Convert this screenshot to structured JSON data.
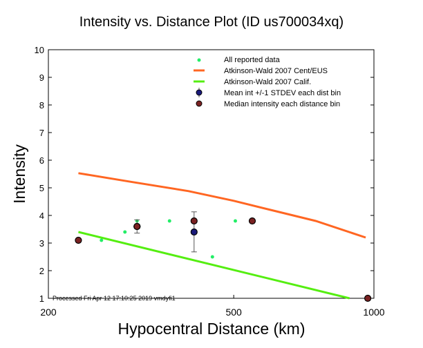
{
  "chart_data": {
    "type": "scatter",
    "title": "Intensity vs. Distance Plot (ID us700034xq)",
    "xlabel": "Hypocentral Distance (km)",
    "ylabel": "Intensity",
    "xscale": "log",
    "xlim": [
      200,
      1000
    ],
    "ylim": [
      1,
      10
    ],
    "xticks": [
      "200",
      "500",
      "1000"
    ],
    "xtick_values": [
      200,
      500,
      1000
    ],
    "yticks": [
      "1",
      "2",
      "3",
      "4",
      "5",
      "6",
      "7",
      "8",
      "9",
      "10"
    ],
    "footer": "Processed Fri Apr 12 17:10:25 2019 vmdyfi1",
    "legend": {
      "placement": "top-right",
      "entries": [
        "All reported data",
        "Atkinson-Wald 2007 Cent/EUS",
        "Atkinson-Wald 2007 Calif.",
        "Mean int +/-1 STDEV each dist bin",
        "Median intensity each distance bin"
      ]
    },
    "colors": {
      "reported": "#22ee66",
      "cent_eus": "#ff6622",
      "calif": "#55ee11",
      "mean": "#1a1a7a",
      "median": "#7a2222"
    },
    "series": [
      {
        "name": "All reported data",
        "points": [
          [
            260,
            3.1
          ],
          [
            292,
            3.4
          ],
          [
            310,
            3.8
          ],
          [
            364,
            3.8
          ],
          [
            450,
            2.5
          ],
          [
            504,
            3.8
          ]
        ]
      },
      {
        "name": "Atkinson-Wald 2007 Cent/EUS",
        "points": [
          [
            232,
            5.53
          ],
          [
            300,
            5.22
          ],
          [
            400,
            4.88
          ],
          [
            500,
            4.53
          ],
          [
            600,
            4.2
          ],
          [
            750,
            3.8
          ],
          [
            960,
            3.2
          ]
        ]
      },
      {
        "name": "Atkinson-Wald 2007 Calif.",
        "points": [
          [
            232,
            3.4
          ],
          [
            886,
            1.0
          ]
        ]
      },
      {
        "name": "Mean int +/-1 STDEV each dist bin",
        "points": [
          [
            310,
            3.6,
            3.36,
            3.84
          ],
          [
            411,
            3.4,
            2.68,
            4.13
          ]
        ]
      },
      {
        "name": "Median intensity each distance bin",
        "points": [
          [
            232,
            3.1
          ],
          [
            310,
            3.6
          ],
          [
            411,
            3.8
          ],
          [
            548,
            3.8
          ],
          [
            970,
            1.0
          ]
        ]
      }
    ]
  }
}
